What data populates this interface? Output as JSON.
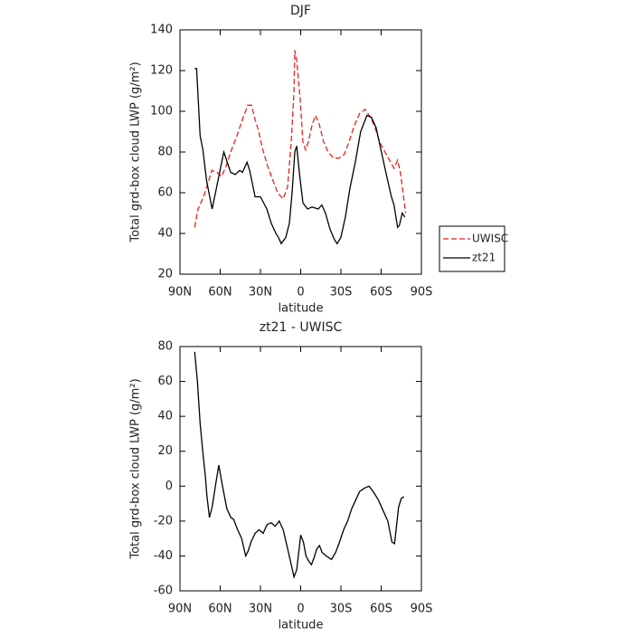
{
  "chart_data": [
    {
      "type": "line",
      "title": "DJF",
      "xlabel": "latitude",
      "ylabel": "Total grd-box cloud LWP (g/m²)",
      "xlim": [
        90,
        -90
      ],
      "xticks": [
        {
          "value": 90,
          "label": "90N"
        },
        {
          "value": 60,
          "label": "60N"
        },
        {
          "value": 30,
          "label": "30N"
        },
        0,
        {
          "value": -30,
          "label": "30S"
        },
        {
          "value": -60,
          "label": "60S"
        },
        {
          "value": -90,
          "label": "90S"
        }
      ],
      "ylim": [
        20,
        140
      ],
      "yticks": [
        20,
        40,
        60,
        80,
        100,
        120,
        140
      ],
      "legend": "right",
      "series": [
        {
          "name": "UWISC",
          "color": "#e8231f",
          "linestyle": "dashed",
          "x": [
            79,
            76.5,
            72.5,
            69,
            66.3,
            62.3,
            59,
            55.6,
            52.2,
            47.5,
            43.4,
            39.4,
            36.7,
            34,
            31.3,
            28.6,
            24.6,
            20.6,
            17.2,
            13,
            9.7,
            7,
            5,
            4.4,
            3,
            0.3,
            -1.7,
            -3.7,
            -5.7,
            -8.4,
            -11,
            -13.7,
            -17.1,
            -20.5,
            -24.5,
            -28.6,
            -32.6,
            -36,
            -40,
            -44,
            -48,
            -52.1,
            -55.5,
            -58.8,
            -62.8,
            -66.2,
            -69.6,
            -72.3,
            -74.3,
            -76.3,
            -78.3
          ],
          "values": [
            43,
            52,
            58,
            65,
            71,
            70,
            68,
            73,
            80,
            88,
            96,
            103,
            103,
            96,
            90,
            82,
            73,
            66,
            60,
            57,
            63,
            85,
            110,
            130,
            125,
            105,
            85,
            81,
            85,
            93,
            98,
            94,
            85,
            80,
            77,
            77,
            79,
            85,
            93,
            99,
            101,
            97,
            92,
            85,
            80,
            76,
            72,
            76,
            70,
            60,
            50
          ]
        },
        {
          "name": "zt21",
          "color": "#000000",
          "linestyle": "solid",
          "x": [
            79,
            77.6,
            75,
            72.9,
            70.2,
            66,
            57.3,
            52.2,
            48.8,
            45.5,
            43.4,
            40,
            38,
            34,
            30,
            25.2,
            21.9,
            18.5,
            16.5,
            14.5,
            11.1,
            8.4,
            6.4,
            4.4,
            3,
            1,
            -1.7,
            -5.1,
            -8.4,
            -13.1,
            -15.8,
            -18.5,
            -21.9,
            -25.2,
            -27.2,
            -29.9,
            -33.3,
            -36.7,
            -40.7,
            -44.7,
            -49.4,
            -52.8,
            -56.2,
            -59.5,
            -63.5,
            -67.6,
            -69.6,
            -72.3,
            -73.6,
            -75.7,
            -77.7
          ],
          "values": [
            121,
            121,
            88,
            81,
            66,
            52,
            80,
            70,
            69,
            71,
            70,
            75,
            71,
            58,
            58,
            52,
            45,
            40,
            38,
            35,
            38,
            45,
            60,
            80,
            83,
            70,
            55,
            52,
            53,
            52,
            54,
            50,
            42,
            37,
            35,
            38,
            48,
            62,
            75,
            90,
            98,
            97,
            92,
            82,
            70,
            58,
            54,
            43,
            44,
            50,
            48
          ]
        }
      ]
    },
    {
      "type": "line",
      "title": "zt21 - UWISC",
      "xlabel": "latitude",
      "ylabel": "Total grd-box cloud LWP (g/m²)",
      "xlim": [
        90,
        -90
      ],
      "xticks": [
        {
          "value": 90,
          "label": "90N"
        },
        {
          "value": 60,
          "label": "60N"
        },
        {
          "value": 30,
          "label": "30N"
        },
        0,
        {
          "value": -30,
          "label": "30S"
        },
        {
          "value": -60,
          "label": "60S"
        },
        {
          "value": -90,
          "label": "90S"
        }
      ],
      "ylim": [
        -60,
        80
      ],
      "yticks": [
        -60,
        -40,
        -20,
        0,
        20,
        40,
        60,
        80
      ],
      "series": [
        {
          "name": "zt21 - UWISC",
          "color": "#000000",
          "linestyle": "solid",
          "x": [
            79,
            77,
            75,
            73,
            71,
            70,
            68,
            66,
            65,
            63,
            61,
            59,
            57,
            55,
            52,
            50,
            47,
            44,
            41,
            39,
            37,
            34,
            31,
            28,
            25,
            22,
            19,
            16,
            13,
            10,
            7,
            5,
            3,
            1,
            0,
            -2,
            -4,
            -6,
            -8,
            -10,
            -12,
            -14,
            -16,
            -19,
            -23,
            -26,
            -29,
            -32,
            -35,
            -38,
            -41,
            -44,
            -48,
            -51,
            -54,
            -58,
            -62,
            -65,
            -68,
            -70,
            -73,
            -75,
            -77
          ],
          "values": [
            77,
            60,
            36,
            20,
            5,
            -5,
            -18,
            -12,
            -7,
            3,
            12,
            3,
            -5,
            -13,
            -18,
            -19,
            -25,
            -30,
            -40,
            -37,
            -32,
            -27,
            -25,
            -27,
            -22,
            -21,
            -23,
            -20,
            -25,
            -35,
            -45,
            -52,
            -48,
            -35,
            -28,
            -32,
            -40,
            -43,
            -45,
            -41,
            -36,
            -34,
            -38,
            -40,
            -42,
            -38,
            -32,
            -25,
            -20,
            -13,
            -8,
            -3,
            -1,
            0,
            -3,
            -8,
            -15,
            -20,
            -32,
            -33,
            -12,
            -7,
            -6
          ]
        }
      ]
    }
  ]
}
